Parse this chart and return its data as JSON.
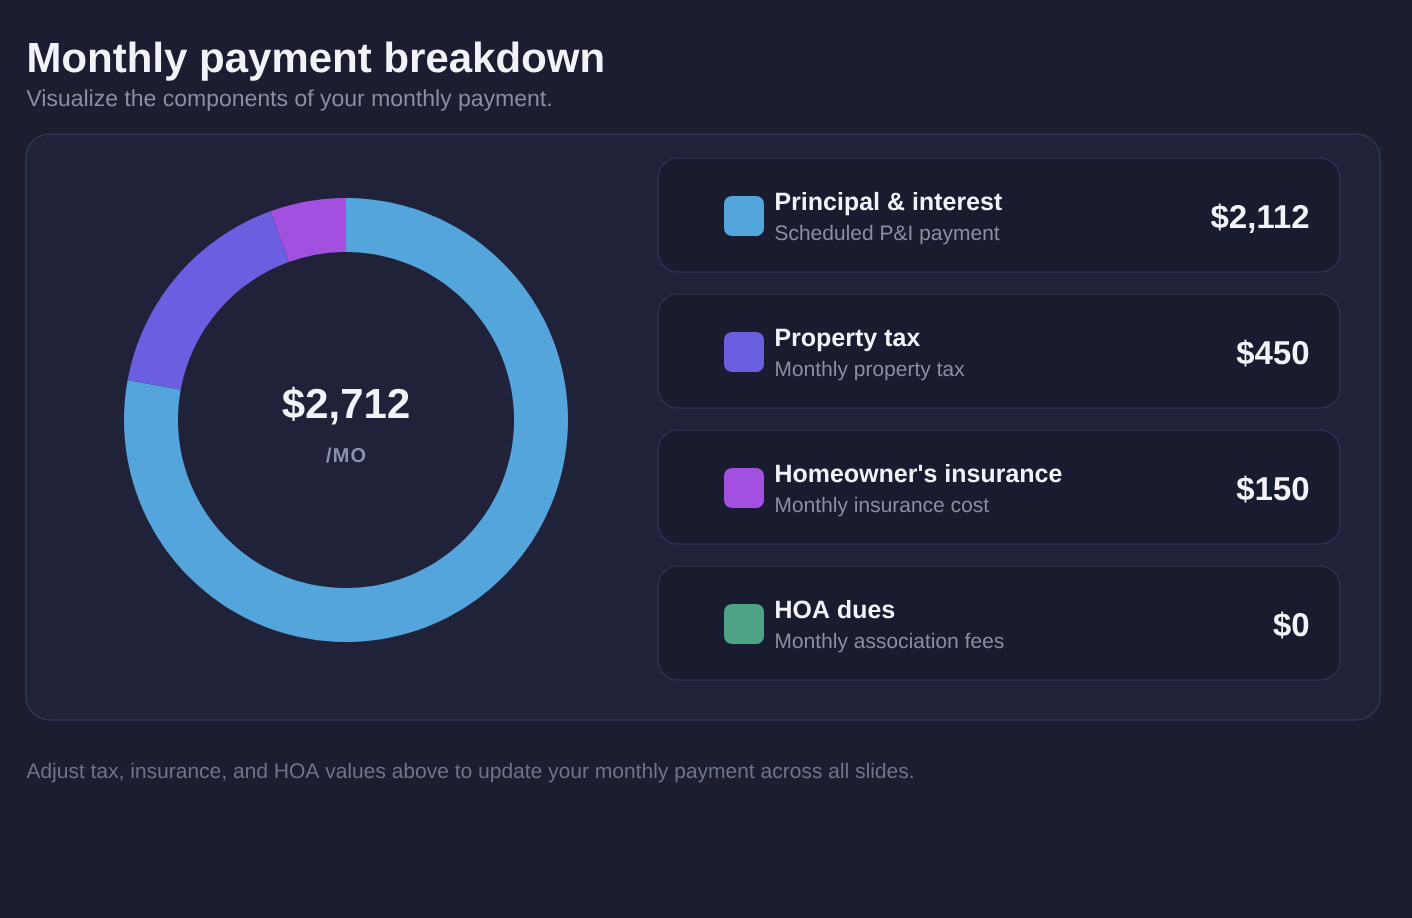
{
  "chart_data": {
    "type": "donut",
    "title": "Monthly payment breakdown",
    "subtitle": "Visualize the components of your monthly payment.",
    "categories": [
      "Principal & interest",
      "Property tax",
      "Homeowner's insurance",
      "HOA dues"
    ],
    "values": [
      2112,
      450,
      150,
      0
    ],
    "colors": [
      "#55a5dd",
      "#6a5fe1",
      "#a350e0",
      "#4ea386"
    ],
    "value_labels": [
      "$2,112",
      "$450",
      "$150",
      "$0"
    ],
    "legend": "right",
    "annotations": [
      "Scheduled P&I payment",
      "Monthly property tax",
      "Monthly insurance cost",
      "Monthly association fees",
      "$2,712",
      "/MO",
      "Adjust tax, insurance, and HOA values above to update your monthly payment across all slides."
    ]
  }
}
